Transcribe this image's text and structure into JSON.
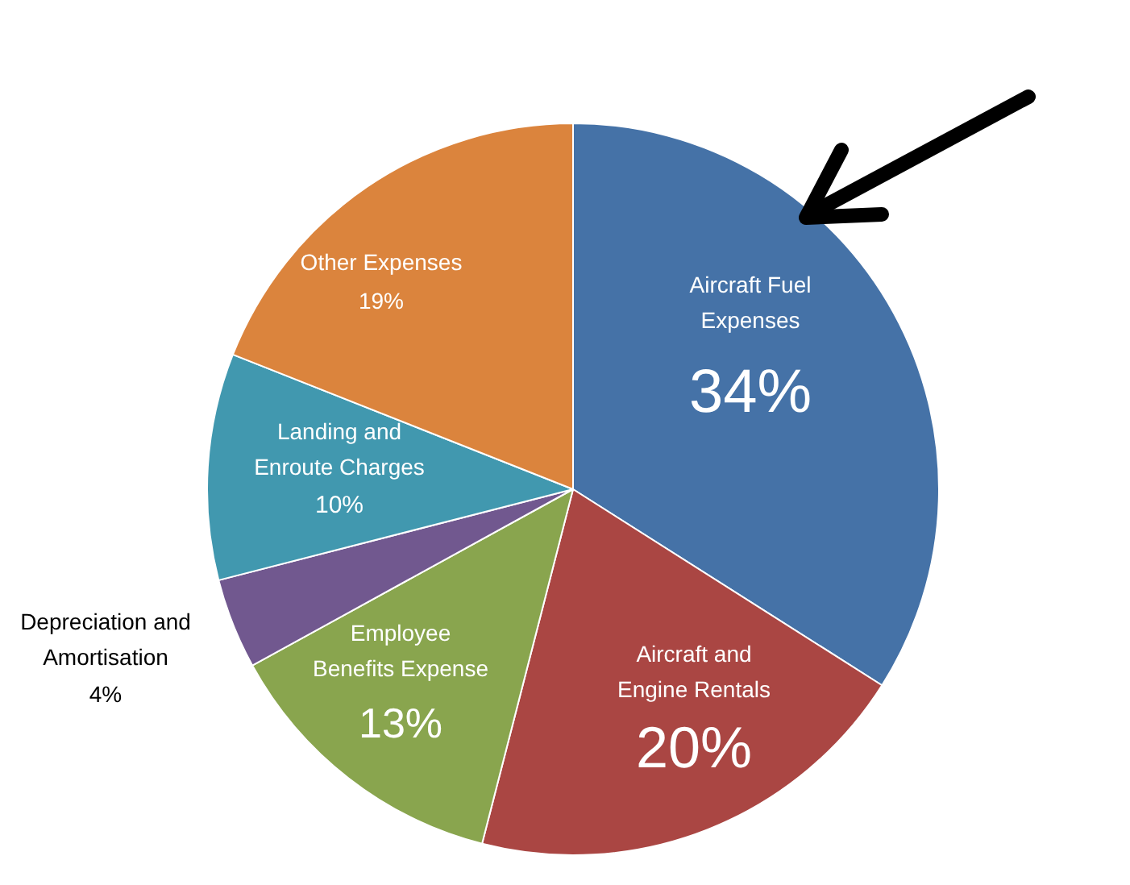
{
  "chart_data": {
    "type": "pie",
    "categories": [
      "Aircraft Fuel Expenses",
      "Aircraft and Engine Rentals",
      "Employee Benefits Expense",
      "Depreciation and Amortisation",
      "Landing and Enroute Charges",
      "Other Expenses"
    ],
    "values": [
      34,
      20,
      13,
      4,
      10,
      19
    ],
    "value_labels": [
      "34%",
      "20%",
      "13%",
      "4%",
      "10%",
      "19%"
    ],
    "colors": [
      "#4572a7",
      "#aa4643",
      "#89a54e",
      "#71588f",
      "#4198af",
      "#db843d"
    ]
  }
}
